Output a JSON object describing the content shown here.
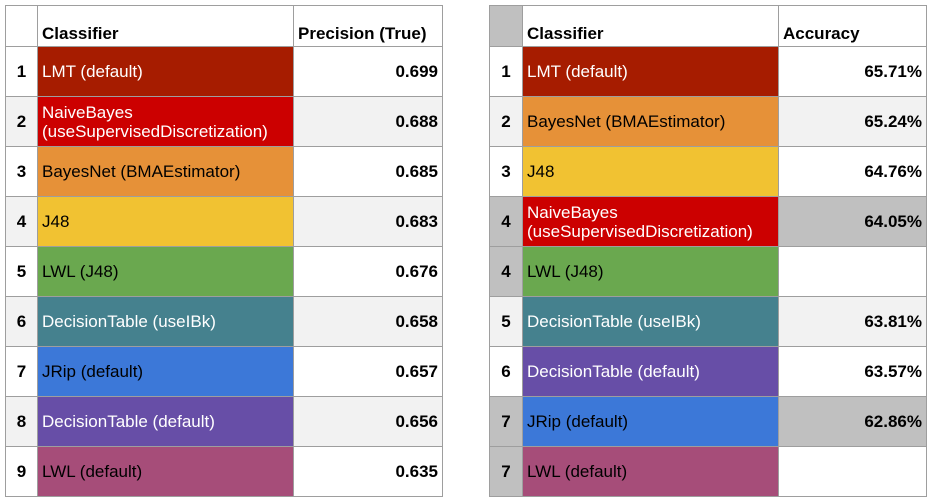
{
  "left_table": {
    "headers": [
      "",
      "Classifier",
      "Precision (True)"
    ],
    "rows": [
      {
        "rank": "1",
        "classifier": "LMT (default)",
        "value": "0.699",
        "color": "#a61c00",
        "text_color": "#ffffff"
      },
      {
        "rank": "2",
        "classifier": "NaiveBayes (useSupervisedDiscretization)",
        "value": "0.688",
        "color": "#cc0000",
        "text_color": "#ffffff"
      },
      {
        "rank": "3",
        "classifier": "BayesNet (BMAEstimator)",
        "value": "0.685",
        "color": "#e69138",
        "text_color": "#000000"
      },
      {
        "rank": "4",
        "classifier": "J48",
        "value": "0.683",
        "color": "#f1c232",
        "text_color": "#000000"
      },
      {
        "rank": "5",
        "classifier": "LWL (J48)",
        "value": "0.676",
        "color": "#6aa84f",
        "text_color": "#000000"
      },
      {
        "rank": "6",
        "classifier": "DecisionTable (useIBk)",
        "value": "0.658",
        "color": "#45818e",
        "text_color": "#ffffff"
      },
      {
        "rank": "7",
        "classifier": "JRip (default)",
        "value": "0.657",
        "color": "#3c78d8",
        "text_color": "#000000"
      },
      {
        "rank": "8",
        "classifier": "DecisionTable (default)",
        "value": "0.656",
        "color": "#674ea7",
        "text_color": "#ffffff"
      },
      {
        "rank": "9",
        "classifier": "LWL (default)",
        "value": "0.635",
        "color": "#a64d79",
        "text_color": "#000000"
      }
    ]
  },
  "right_table": {
    "headers": [
      "",
      "Classifier",
      "Accuracy"
    ],
    "rows": [
      {
        "rank": "1",
        "classifier": "LMT (default)",
        "value": "65.71%",
        "color": "#a61c00",
        "text_color": "#ffffff",
        "highlight": false
      },
      {
        "rank": "2",
        "classifier": "BayesNet (BMAEstimator)",
        "value": "65.24%",
        "color": "#e69138",
        "text_color": "#000000",
        "highlight": false
      },
      {
        "rank": "3",
        "classifier": "J48",
        "value": "64.76%",
        "color": "#f1c232",
        "text_color": "#000000",
        "highlight": false
      },
      {
        "rank": "4",
        "classifier": "NaiveBayes (useSupervisedDiscretization)",
        "value": "64.05%",
        "color": "#cc0000",
        "text_color": "#ffffff",
        "highlight": true
      },
      {
        "rank": "4",
        "classifier": "LWL (J48)",
        "value": "",
        "color": "#6aa84f",
        "text_color": "#000000",
        "highlight": true
      },
      {
        "rank": "5",
        "classifier": "DecisionTable (useIBk)",
        "value": "63.81%",
        "color": "#45818e",
        "text_color": "#ffffff",
        "highlight": false
      },
      {
        "rank": "6",
        "classifier": "DecisionTable (default)",
        "value": "63.57%",
        "color": "#674ea7",
        "text_color": "#ffffff",
        "highlight": false
      },
      {
        "rank": "7",
        "classifier": "JRip (default)",
        "value": "62.86%",
        "color": "#3c78d8",
        "text_color": "#000000",
        "highlight": true
      },
      {
        "rank": "7",
        "classifier": "LWL (default)",
        "value": "",
        "color": "#a64d79",
        "text_color": "#000000",
        "highlight": true
      }
    ]
  }
}
